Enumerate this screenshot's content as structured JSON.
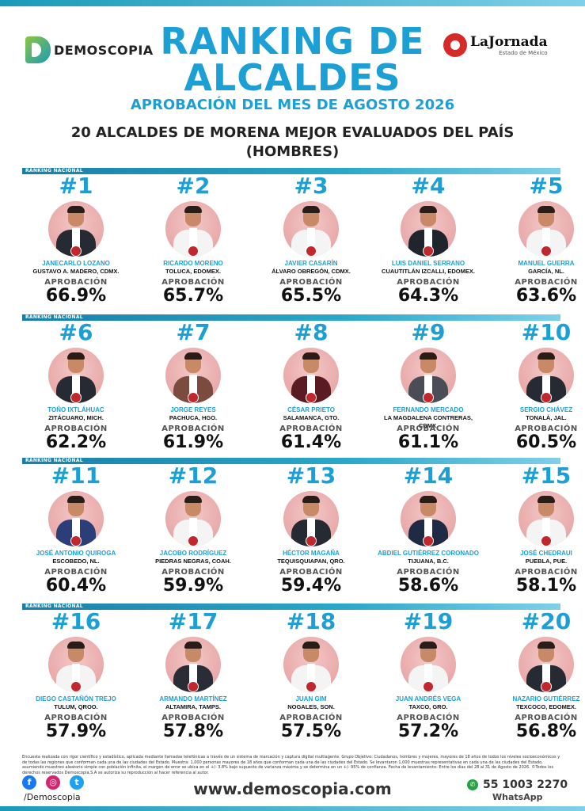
{
  "header": {
    "brand_left": "DEMOSCOPIA",
    "brand_right": "LaJornada",
    "brand_right_sub": "Estado de México",
    "title_line1": "RANKING DE",
    "title_line2": "ALCALDES",
    "subtitle": "APROBACIÓN DEL MES DE AGOSTO 2026",
    "heading_line1": "20 ALCALDES DE MORENA MEJOR EVALUADOS DEL PAÍS",
    "heading_line2": "(HOMBRES)"
  },
  "section_label": "RANKING NACIONAL",
  "approval_label": "APROBACIÓN",
  "ranking": [
    {
      "rank": "#1",
      "name": "JANECARLO LOZANO",
      "location": "GUSTAVO A. MADERO, CDMX.",
      "approval": "66.9%"
    },
    {
      "rank": "#2",
      "name": "RICARDO MORENO",
      "location": "TOLUCA, EDOMEX.",
      "approval": "65.7%"
    },
    {
      "rank": "#3",
      "name": "JAVIER CASARÍN",
      "location": "ÁLVARO OBREGÓN, CDMX.",
      "approval": "65.5%"
    },
    {
      "rank": "#4",
      "name": "LUIS DANIEL SERRANO",
      "location": "CUAUTITLÁN IZCALLI, EDOMEX.",
      "approval": "64.3%"
    },
    {
      "rank": "#5",
      "name": "MANUEL GUERRA",
      "location": "GARCÍA, NL.",
      "approval": "63.6%"
    },
    {
      "rank": "#6",
      "name": "TOÑO IXTLÁHUAC",
      "location": "ZITÁCUARO, MICH.",
      "approval": "62.2%"
    },
    {
      "rank": "#7",
      "name": "JORGE REYES",
      "location": "PACHUCA, HGO.",
      "approval": "61.9%"
    },
    {
      "rank": "#8",
      "name": "CÉSAR PRIETO",
      "location": "SALAMANCA, GTO.",
      "approval": "61.4%"
    },
    {
      "rank": "#9",
      "name": "FERNANDO MERCADO",
      "location": "LA MAGDALENA CONTRERAS, CDMX.",
      "approval": "61.1%"
    },
    {
      "rank": "#10",
      "name": "SERGIO CHÁVEZ",
      "location": "TONALÁ, JAL.",
      "approval": "60.5%"
    },
    {
      "rank": "#11",
      "name": "JOSÉ ANTONIO QUIROGA",
      "location": "ESCOBEDO, NL.",
      "approval": "60.4%"
    },
    {
      "rank": "#12",
      "name": "JACOBO RODRÍGUEZ",
      "location": "PIEDRAS NEGRAS, COAH.",
      "approval": "59.9%"
    },
    {
      "rank": "#13",
      "name": "HÉCTOR MAGAÑA",
      "location": "TEQUISQUIAPAN, QRO.",
      "approval": "59.4%"
    },
    {
      "rank": "#14",
      "name": "ABDIEL GUTIÉRREZ CORONADO",
      "location": "TIJUANA, B.C.",
      "approval": "58.6%"
    },
    {
      "rank": "#15",
      "name": "JOSÉ CHEDRAUI",
      "location": "PUEBLA, PUE.",
      "approval": "58.1%"
    },
    {
      "rank": "#16",
      "name": "DIEGO CASTAÑÓN TREJO",
      "location": "TULUM, QROO.",
      "approval": "57.9%"
    },
    {
      "rank": "#17",
      "name": "ARMANDO MARTÍNEZ",
      "location": "ALTAMIRA, TAMPS.",
      "approval": "57.8%"
    },
    {
      "rank": "#18",
      "name": "JUAN GIM",
      "location": "NOGALES, SON.",
      "approval": "57.5%"
    },
    {
      "rank": "#19",
      "name": "JUAN ANDRÉS VEGA",
      "location": "TAXCO, GRO.",
      "approval": "57.2%"
    },
    {
      "rank": "#20",
      "name": "NAZARIO GUTIÉRREZ",
      "location": "TEXCOCO, EDOMEX.",
      "approval": "56.8%"
    }
  ],
  "footer": {
    "methodology": "Encuesta realizada con rigor científico y estadístico, aplicada mediante llamadas telefónicas a través de un sistema de marcación y captura digital multiagente. Grupo Objetivo: Ciudadanos, hombres y mujeres, mayores de 18 años de todos los niveles socioeconómicos y de todas las regiones que conforman cada una de las ciudades del Estado. Muestra: 1,000 personas mayores de 18 años que conforman cada una de las ciudades del Estado. Se levantaron 1,000 muestras representativas en cada una de las ciudades del Estado, asumiendo muestreo aleatorio simple con población infinita, el margen de error se ubica en el +/- 3.8% bajo supuesto de varianza máxima y se determina en un +/- 95% de confianza. Fecha de levantamiento: Entre los días del 28 al 31 de Agosto de 2026. ©Todos los derechos reservados Demoscopia,S.A se autoriza su reproducción al hacer referencia al autor.",
    "social_handle": "/Demoscopia",
    "website": "www.demoscopia.com",
    "phone": "55 1003 2270",
    "whatsapp_label": "WhatsApp",
    "facebook_glyph": "f",
    "instagram_glyph": "◎",
    "twitter_glyph": "t",
    "whatsapp_glyph": "✆"
  }
}
